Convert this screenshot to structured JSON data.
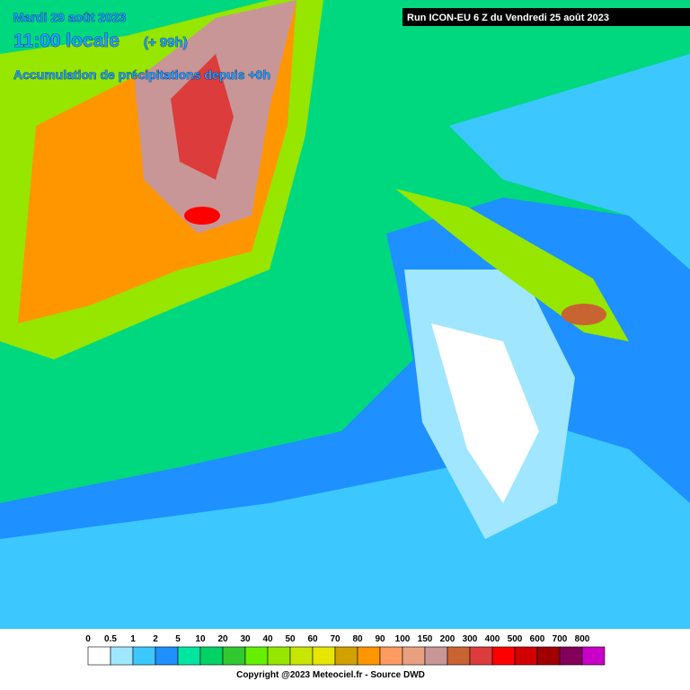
{
  "header": {
    "date": "Mardi 29 août 2023",
    "time": "11:00 locale",
    "offset": "(+ 99h)",
    "subtitle": "Accumulation de précipitations depuis +0h"
  },
  "run": "Run ICON-EU 6 Z du Vendredi 25 août 2023",
  "legend": [
    {
      "label": "0",
      "color": "#ffffff"
    },
    {
      "label": "0.5",
      "color": "#a0e6ff"
    },
    {
      "label": "1",
      "color": "#3cc8ff"
    },
    {
      "label": "2",
      "color": "#1e90ff"
    },
    {
      "label": "5",
      "color": "#00e6a0"
    },
    {
      "label": "10",
      "color": "#00d264"
    },
    {
      "label": "20",
      "color": "#32c832"
    },
    {
      "label": "30",
      "color": "#64f000"
    },
    {
      "label": "40",
      "color": "#96e600"
    },
    {
      "label": "50",
      "color": "#c8e600"
    },
    {
      "label": "60",
      "color": "#e6e600"
    },
    {
      "label": "70",
      "color": "#d2a000"
    },
    {
      "label": "80",
      "color": "#ff9600"
    },
    {
      "label": "90",
      "color": "#ff9a60"
    },
    {
      "label": "100",
      "color": "#e8a080"
    },
    {
      "label": "150",
      "color": "#c89696"
    },
    {
      "label": "200",
      "color": "#c86432"
    },
    {
      "label": "300",
      "color": "#dc3c3c"
    },
    {
      "label": "400",
      "color": "#ff0000"
    },
    {
      "label": "500",
      "color": "#d20000"
    },
    {
      "label": "600",
      "color": "#a00000"
    },
    {
      "label": "700",
      "color": "#82005a"
    },
    {
      "label": "800",
      "color": "#c800c8"
    }
  ],
  "copyright": "Copyright @2023 Meteociel.fr - Source DWD"
}
